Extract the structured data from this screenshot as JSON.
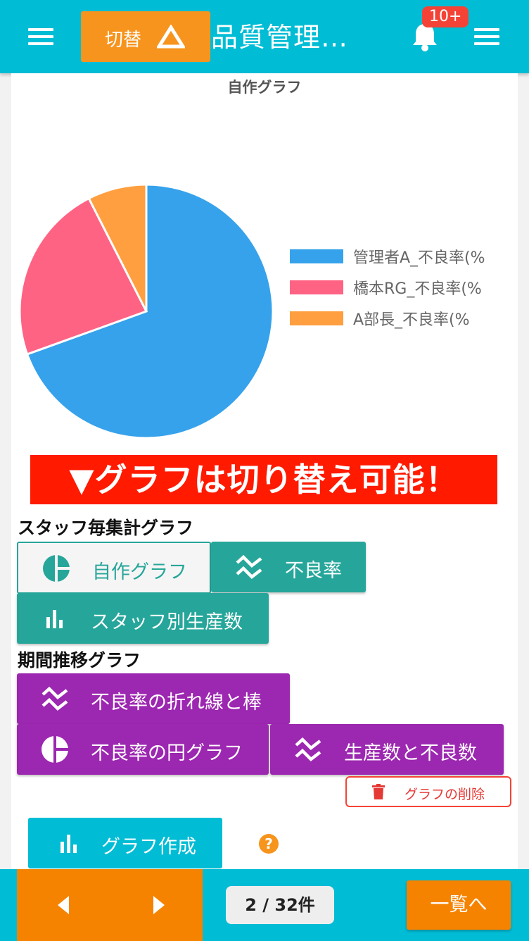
{
  "header": {
    "switch_label": "切替",
    "title": "品質管理…",
    "notification_badge": "10+"
  },
  "chart_data": {
    "type": "pie",
    "title": "自作グラフ",
    "categories": [
      "管理者A_不良率(%",
      "橋本RG_不良率(%",
      "A部長_不良率(%"
    ],
    "values": [
      69.5,
      23,
      7.5
    ],
    "colors": [
      "#36a2eb",
      "#ff6384",
      "#ff9f40"
    ],
    "legend_position": "right"
  },
  "banner": "▼グラフは切り替え可能！",
  "staff_section": {
    "title": "スタッフ毎集計グラフ",
    "buttons": {
      "custom": "自作グラフ",
      "defect_rate": "不良率",
      "staff_production": "スタッフ別生産数"
    }
  },
  "period_section": {
    "title": "期間推移グラフ",
    "buttons": {
      "line_bar": "不良率の折れ線と棒",
      "pie": "不良率の円グラフ",
      "production_defect": "生産数と不良数"
    }
  },
  "delete_label": "グラフの削除",
  "create_label": "グラフ作成",
  "footer": {
    "pager": "2 / 32件",
    "list_label": "一覧へ"
  }
}
